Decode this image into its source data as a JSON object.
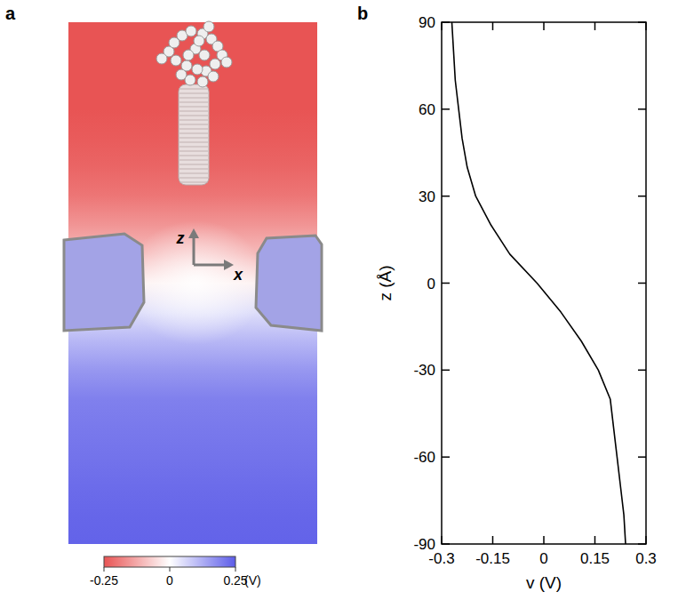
{
  "chart_data": [
    {
      "type": "heatmap",
      "panel": "a",
      "axis_arrows": [
        "z",
        "x"
      ],
      "colorbar": {
        "lim": [
          -0.25,
          0.25
        ],
        "ticks": [
          -0.25,
          0,
          0.25
        ],
        "label": "(V)"
      }
    },
    {
      "type": "line",
      "panel": "b",
      "x": [
        -0.27,
        -0.265,
        -0.26,
        -0.25,
        -0.24,
        -0.225,
        -0.2,
        -0.155,
        -0.1,
        -0.02,
        0.05,
        0.11,
        0.16,
        0.195,
        0.205,
        0.215,
        0.225,
        0.235,
        0.24
      ],
      "values": [
        90,
        80,
        70,
        60,
        50,
        40,
        30,
        20,
        10,
        0,
        -10,
        -20,
        -30,
        -40,
        -50,
        -60,
        -70,
        -80,
        -90
      ],
      "xlim": [
        -0.3,
        0.3
      ],
      "xticks": [
        -0.3,
        -0.15,
        0,
        0.15,
        0.3
      ],
      "ylim": [
        -90,
        90
      ],
      "yticks": [
        -90,
        -60,
        -30,
        0,
        30,
        60,
        90
      ],
      "x_label": "v (V)",
      "y_label": "z (Å)",
      "color": "#000000"
    }
  ]
}
